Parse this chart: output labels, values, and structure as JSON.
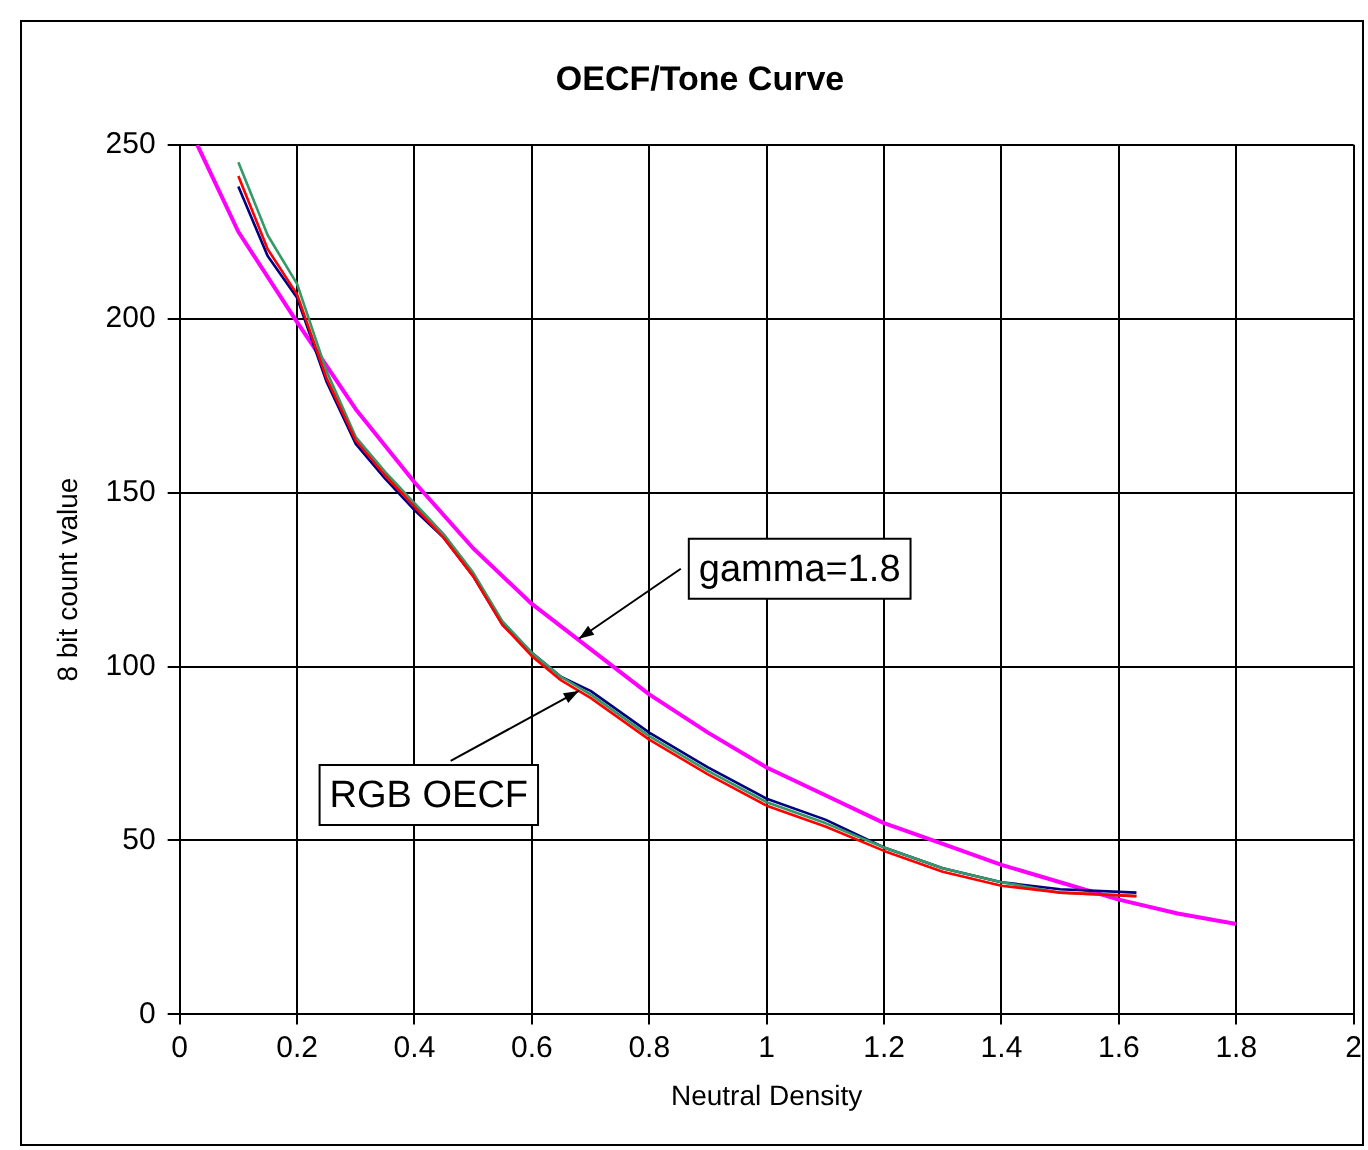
{
  "chart_data": {
    "type": "line",
    "title": "OECF/Tone Curve",
    "xlabel": "Neutral Density",
    "ylabel": "8 bit count value",
    "series": [
      {
        "color": "#ff0000",
        "x": [
          0.1,
          0.15,
          0.2,
          0.25,
          0.3,
          0.35,
          0.4,
          0.45,
          0.5,
          0.55,
          0.6,
          0.65,
          0.7,
          0.8,
          0.9,
          1.0,
          1.1,
          1.2,
          1.3,
          1.4,
          1.5,
          1.63
        ],
        "values": [
          241,
          220,
          207,
          183,
          165,
          155,
          146,
          137,
          126,
          112,
          103,
          96,
          91,
          79,
          69,
          60,
          54,
          47,
          41,
          37,
          35,
          34
        ]
      },
      {
        "color": "#339966",
        "x": [
          0.1,
          0.15,
          0.2,
          0.25,
          0.3,
          0.35,
          0.4,
          0.45,
          0.5,
          0.55,
          0.6,
          0.65,
          0.7,
          0.8,
          0.9,
          1.0,
          1.1,
          1.2,
          1.3,
          1.4,
          1.5,
          1.63
        ],
        "values": [
          245,
          224,
          210,
          185,
          166,
          156,
          147,
          138,
          127,
          113,
          104,
          97,
          92,
          80,
          70,
          61,
          55,
          48,
          42,
          38,
          35,
          34
        ]
      },
      {
        "color": "#000080",
        "x": [
          0.1,
          0.15,
          0.2,
          0.25,
          0.3,
          0.35,
          0.4,
          0.45,
          0.5,
          0.55,
          0.6,
          0.65,
          0.7,
          0.8,
          0.9,
          1.0,
          1.1,
          1.2,
          1.3,
          1.4,
          1.5,
          1.63
        ],
        "values": [
          238,
          218,
          206,
          182,
          164,
          154,
          145,
          137,
          126,
          112,
          104,
          97,
          93,
          81,
          71,
          62,
          56,
          48,
          42,
          38,
          36,
          35
        ]
      },
      {
        "color": "#ff00ff",
        "x": [
          0.03,
          0.1,
          0.2,
          0.3,
          0.4,
          0.5,
          0.6,
          0.7,
          0.8,
          0.9,
          1.0,
          1.1,
          1.2,
          1.3,
          1.4,
          1.5,
          1.6,
          1.7,
          1.8
        ],
        "values": [
          250,
          225,
          199,
          174,
          153,
          134,
          118,
          105,
          92,
          81,
          71,
          63,
          55,
          49,
          43,
          38,
          33,
          29,
          26
        ]
      }
    ],
    "annotations": [
      {
        "text": "gamma=1.8",
        "x": 0.68,
        "y": 108
      },
      {
        "text": "RGB OECF",
        "x": 0.68,
        "y": 93
      }
    ],
    "xlim": [
      0,
      2
    ],
    "xticks": [
      0,
      0.2,
      0.4,
      0.6,
      0.8,
      1,
      1.2,
      1.4,
      1.6,
      1.8,
      2
    ],
    "ylim": [
      0,
      250
    ],
    "yticks": [
      0,
      50,
      100,
      150,
      200,
      250
    ],
    "grid": true,
    "legend": false,
    "marker": "none",
    "line_style": "solid"
  }
}
